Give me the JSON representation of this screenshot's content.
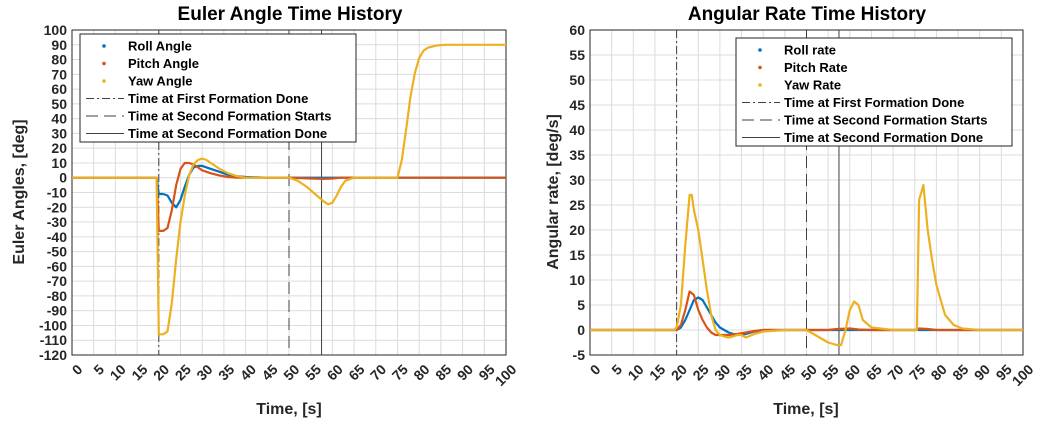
{
  "chart_data": [
    {
      "type": "line",
      "title": "Euler Angle Time History",
      "xlabel": "Time, [s]",
      "ylabel": "Euler Angles, [deg]",
      "xlim": [
        0,
        100
      ],
      "ylim": [
        -120,
        100
      ],
      "x_ticks": [
        0,
        5,
        10,
        15,
        20,
        25,
        30,
        35,
        40,
        45,
        50,
        55,
        60,
        65,
        70,
        75,
        80,
        85,
        90,
        95,
        100
      ],
      "y_ticks": [
        -120,
        -110,
        -100,
        -90,
        -80,
        -70,
        -60,
        -50,
        -40,
        -30,
        -20,
        -10,
        0,
        10,
        20,
        30,
        40,
        50,
        60,
        70,
        80,
        90,
        100
      ],
      "grid": true,
      "legend_position": "top-right",
      "series": [
        {
          "name": "Roll Angle",
          "color": "#0072BD",
          "x": [
            0,
            19.5,
            20,
            21,
            22,
            23,
            24,
            25,
            26,
            27,
            28,
            29,
            30,
            32,
            34,
            36,
            38,
            40,
            45,
            50,
            55,
            100
          ],
          "y": [
            0,
            0,
            -11,
            -11,
            -12,
            -17,
            -20,
            -15,
            -6,
            2,
            7,
            8,
            8,
            6,
            4,
            2,
            1,
            0.5,
            0,
            0,
            0,
            0
          ]
        },
        {
          "name": "Pitch Angle",
          "color": "#D95319",
          "x": [
            0,
            19.5,
            20,
            21,
            22,
            23,
            24,
            25,
            26,
            27,
            28,
            29,
            30,
            32,
            34,
            36,
            38,
            40,
            45,
            50,
            55,
            58,
            60,
            62,
            65,
            100
          ],
          "y": [
            0,
            0,
            -36,
            -36,
            -34,
            -22,
            -5,
            6,
            10,
            10,
            9,
            7,
            5,
            3,
            1.5,
            0.5,
            0,
            0,
            0,
            0,
            -0.5,
            -0.8,
            -0.5,
            0,
            0,
            0
          ]
        },
        {
          "name": "Yaw Angle",
          "color": "#EDB120",
          "x": [
            0,
            19.5,
            20,
            21,
            22,
            23,
            24,
            25,
            26,
            27,
            28,
            29,
            30,
            31,
            32,
            34,
            36,
            38,
            40,
            45,
            50,
            52,
            54,
            56,
            58,
            59,
            60,
            61,
            62,
            63,
            65,
            70,
            75,
            76,
            77,
            78,
            79,
            80,
            81,
            82,
            84,
            86,
            90,
            95,
            100
          ],
          "y": [
            0,
            0,
            -106,
            -106,
            -104,
            -85,
            -55,
            -30,
            -12,
            2,
            9,
            12,
            13,
            12,
            10,
            6,
            3,
            1,
            0,
            0,
            0,
            -2,
            -6,
            -11,
            -16,
            -18,
            -17,
            -12,
            -6,
            -2,
            0,
            0,
            0,
            12,
            33,
            55,
            71,
            81,
            86,
            88,
            89.5,
            90,
            90,
            90,
            90
          ]
        }
      ],
      "reference_lines": [
        {
          "name": "Time at First Formation Done",
          "x": 20,
          "style": "dashdot"
        },
        {
          "name": "Time at Second Formation Starts",
          "x": 50,
          "style": "dashed"
        },
        {
          "name": "Time at Second Formation Done",
          "x": 57.5,
          "style": "solid"
        }
      ]
    },
    {
      "type": "line",
      "title": "Angular Rate Time History",
      "xlabel": "Time, [s]",
      "ylabel": "Angular rate, [deg/s]",
      "xlim": [
        0,
        100
      ],
      "ylim": [
        -5,
        60
      ],
      "x_ticks": [
        0,
        5,
        10,
        15,
        20,
        25,
        30,
        35,
        40,
        45,
        50,
        55,
        60,
        65,
        70,
        75,
        80,
        85,
        90,
        95,
        100
      ],
      "y_ticks": [
        -5,
        0,
        5,
        10,
        15,
        20,
        25,
        30,
        35,
        40,
        45,
        50,
        55,
        60
      ],
      "grid": true,
      "legend_position": "top-right",
      "series": [
        {
          "name": "Roll rate",
          "color": "#0072BD",
          "x": [
            0,
            19.5,
            20,
            21,
            22,
            23,
            24,
            25,
            26,
            27,
            28,
            29,
            30,
            32,
            34,
            36,
            38,
            40,
            45,
            50,
            100
          ],
          "y": [
            0,
            0,
            0,
            0.5,
            2,
            4,
            6,
            6.5,
            6,
            4.5,
            3,
            1.5,
            0.5,
            -0.5,
            -1,
            -0.8,
            -0.3,
            0,
            0,
            0,
            0
          ]
        },
        {
          "name": "Pitch Rate",
          "color": "#D95319",
          "x": [
            0,
            19.5,
            20,
            21,
            22,
            23,
            24,
            25,
            26,
            27,
            28,
            29,
            30,
            32,
            34,
            36,
            38,
            40,
            45,
            50,
            55,
            57,
            60,
            62,
            65,
            75,
            76,
            78,
            80,
            100
          ],
          "y": [
            0,
            0,
            0,
            1,
            4,
            7.7,
            7,
            4,
            2,
            0.5,
            -0.5,
            -1,
            -1,
            -1,
            -0.8,
            -0.5,
            -0.2,
            0,
            0,
            0,
            0,
            0.2,
            0.3,
            0.1,
            0,
            0,
            0.3,
            0.2,
            0,
            0
          ]
        },
        {
          "name": "Yaw Rate",
          "color": "#EDB120",
          "x": [
            0,
            19.5,
            20,
            21,
            22,
            23,
            23.5,
            24,
            25,
            26,
            27,
            28,
            29,
            30,
            31,
            32,
            33,
            34,
            35,
            36,
            38,
            40,
            45,
            50,
            52,
            55,
            57,
            58,
            59,
            60,
            61,
            62,
            63,
            65,
            70,
            75,
            75.5,
            76,
            77,
            78,
            79,
            80,
            82,
            84,
            86,
            90,
            100
          ],
          "y": [
            0,
            0,
            0.5,
            5,
            17,
            27,
            27,
            24,
            20,
            14,
            8,
            3,
            0,
            -1,
            -1.3,
            -1.5,
            -1.3,
            -1,
            -1,
            -1.5,
            -0.8,
            -0.3,
            0,
            0,
            -1,
            -2.5,
            -3,
            -3,
            0,
            4,
            5.7,
            5,
            2,
            0.5,
            0,
            0,
            0,
            26,
            29,
            20,
            14,
            9,
            3,
            1,
            0.3,
            0,
            0
          ]
        }
      ],
      "reference_lines": [
        {
          "name": "Time at First Formation Done",
          "x": 20,
          "style": "dashdot"
        },
        {
          "name": "Time at Second Formation Starts",
          "x": 50,
          "style": "dashed"
        },
        {
          "name": "Time at Second Formation Done",
          "x": 57.5,
          "style": "solid"
        }
      ]
    }
  ]
}
